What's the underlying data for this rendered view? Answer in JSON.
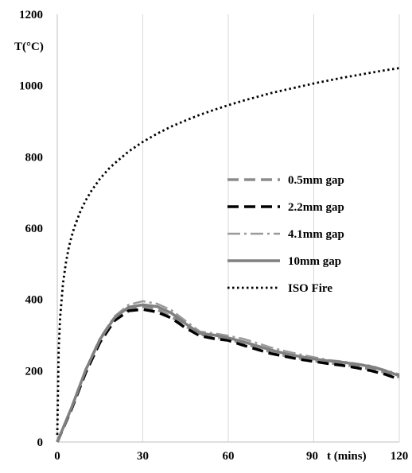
{
  "chart_data": {
    "type": "line",
    "title": "",
    "xlabel": "t (mins)",
    "ylabel": "T(°C)",
    "xlim": [
      0,
      120
    ],
    "ylim": [
      0,
      1200
    ],
    "xticks": [
      0,
      30,
      60,
      90,
      120
    ],
    "yticks": [
      0,
      200,
      400,
      600,
      800,
      1000,
      1200
    ],
    "grid": {
      "vertical": true,
      "horizontal": false,
      "color": "#d9d9d9"
    },
    "legend_position": "center-right",
    "series": [
      {
        "name": "0.5mm gap",
        "style": "dashed",
        "color": "#8c8c8c",
        "x": [
          0,
          5,
          10,
          15,
          20,
          25,
          30,
          35,
          40,
          45,
          50,
          55,
          60,
          65,
          70,
          75,
          80,
          85,
          90,
          95,
          100,
          105,
          110,
          115,
          120
        ],
        "y": [
          0,
          95,
          200,
          285,
          345,
          372,
          380,
          372,
          352,
          325,
          302,
          295,
          288,
          278,
          265,
          252,
          242,
          235,
          228,
          222,
          218,
          212,
          205,
          195,
          182
        ]
      },
      {
        "name": "2.2mm gap",
        "style": "dashed",
        "color": "#000000",
        "x": [
          0,
          5,
          10,
          15,
          20,
          25,
          30,
          35,
          40,
          45,
          50,
          55,
          60,
          65,
          70,
          75,
          80,
          85,
          90,
          95,
          100,
          105,
          110,
          115,
          120
        ],
        "y": [
          0,
          92,
          195,
          280,
          340,
          368,
          372,
          365,
          348,
          320,
          298,
          290,
          285,
          272,
          260,
          248,
          240,
          232,
          226,
          220,
          215,
          208,
          200,
          190,
          176
        ]
      },
      {
        "name": "4.1mm gap",
        "style": "dashdot",
        "color": "#9a9a9a",
        "x": [
          0,
          5,
          10,
          15,
          20,
          25,
          30,
          35,
          40,
          45,
          50,
          55,
          60,
          65,
          70,
          75,
          80,
          85,
          90,
          95,
          100,
          105,
          110,
          115,
          120
        ],
        "y": [
          0,
          98,
          205,
          292,
          352,
          385,
          395,
          388,
          370,
          340,
          310,
          305,
          298,
          290,
          278,
          265,
          255,
          246,
          238,
          230,
          226,
          220,
          214,
          202,
          190
        ]
      },
      {
        "name": "10mm gap",
        "style": "solid",
        "color": "#808080",
        "x": [
          0,
          5,
          10,
          15,
          20,
          25,
          30,
          35,
          40,
          45,
          50,
          55,
          60,
          65,
          70,
          75,
          80,
          85,
          90,
          95,
          100,
          105,
          110,
          115,
          120
        ],
        "y": [
          0,
          96,
          202,
          288,
          348,
          378,
          385,
          380,
          362,
          332,
          305,
          300,
          292,
          282,
          270,
          258,
          248,
          240,
          233,
          228,
          224,
          218,
          212,
          200,
          186
        ]
      },
      {
        "name": "ISO Fire",
        "style": "dotted",
        "color": "#000000",
        "x": [
          0,
          0.5,
          1,
          2,
          3,
          4,
          5,
          6,
          8,
          10,
          12,
          15,
          18,
          20,
          25,
          30,
          35,
          40,
          45,
          50,
          55,
          60,
          65,
          70,
          75,
          80,
          85,
          90,
          95,
          100,
          105,
          110,
          115,
          120
        ],
        "y": [
          20,
          261,
          349,
          445,
          502,
          544,
          576,
          603,
          645,
          678,
          705,
          739,
          766,
          781,
          815,
          842,
          865,
          885,
          902,
          918,
          932,
          945,
          957,
          968,
          979,
          988,
          997,
          1006,
          1014,
          1022,
          1029,
          1036,
          1043,
          1049
        ]
      }
    ]
  }
}
